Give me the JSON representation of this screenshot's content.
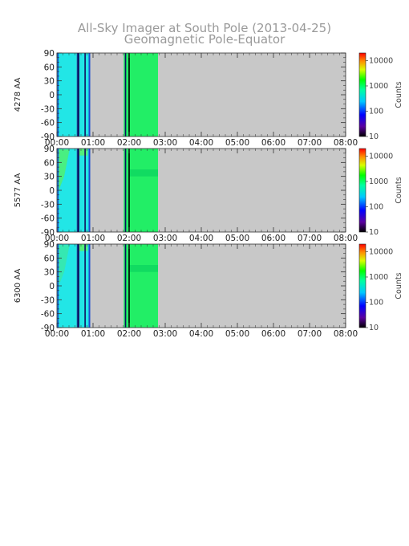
{
  "title_line1": "All-Sky Imager at South Pole (2013-04-25)",
  "title_line2": "Geomagnetic Pole-Equator",
  "chart_data": [
    {
      "type": "heatmap",
      "ylabel": "4278 AA",
      "x_ticks": [
        "00:00",
        "01:00",
        "02:00",
        "03:00",
        "04:00",
        "05:00",
        "06:00",
        "07:00",
        "08:00"
      ],
      "y_ticks": [
        90,
        60,
        30,
        0,
        -30,
        -60,
        -90
      ],
      "xlim_hours": [
        0,
        8
      ],
      "ylim": [
        -90,
        90
      ],
      "data_coverage_hours": [
        0,
        2.8
      ],
      "dominant_level_counts": 500,
      "colorbar": {
        "label": "Counts",
        "scale": "log",
        "ticks": [
          "10000",
          "1000",
          "100",
          "10"
        ]
      }
    },
    {
      "type": "heatmap",
      "ylabel": "5577 AA",
      "x_ticks": [
        "00:00",
        "01:00",
        "02:00",
        "03:00",
        "04:00",
        "05:00",
        "06:00",
        "07:00",
        "08:00"
      ],
      "y_ticks": [
        90,
        60,
        30,
        0,
        -30,
        -60,
        -90
      ],
      "xlim_hours": [
        0,
        8
      ],
      "ylim": [
        -90,
        90
      ],
      "data_coverage_hours": [
        0,
        2.8
      ],
      "dominant_level_counts": 500,
      "colorbar": {
        "label": "Counts",
        "scale": "log",
        "ticks": [
          "10000",
          "1000",
          "100",
          "10"
        ]
      }
    },
    {
      "type": "heatmap",
      "ylabel": "6300 AA",
      "x_ticks": [
        "00:00",
        "01:00",
        "02:00",
        "03:00",
        "04:00",
        "05:00",
        "06:00",
        "07:00",
        "08:00"
      ],
      "y_ticks": [
        90,
        60,
        30,
        0,
        -30,
        -60,
        -90
      ],
      "xlim_hours": [
        0,
        8
      ],
      "ylim": [
        -90,
        90
      ],
      "data_coverage_hours": [
        0,
        2.8
      ],
      "dominant_level_counts": 500,
      "colorbar": {
        "label": "Counts",
        "scale": "log",
        "ticks": [
          "10000",
          "1000",
          "100",
          "10"
        ]
      }
    }
  ],
  "colors": {
    "no_data": "#c8c8c8",
    "cyan": "#22e6e6",
    "green": "#22ee66",
    "dark_line": "#101060",
    "blue_line": "#1a4ad0",
    "axis": "#333333"
  }
}
